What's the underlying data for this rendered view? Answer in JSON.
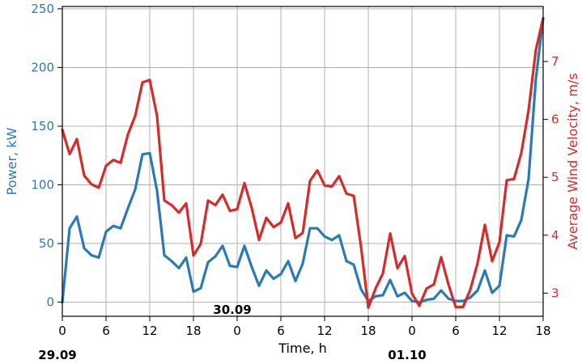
{
  "chart_data": {
    "type": "line",
    "title": "",
    "xlabel": "Time, h",
    "ylabel_left": "Power, kW",
    "ylabel_right": "Average Wind Velocity, m/s",
    "grid": true,
    "xlim": [
      0,
      66
    ],
    "ylim_left": [
      -12,
      252
    ],
    "ylim_right": [
      2.6,
      7.95
    ],
    "x_ticks": [
      0,
      6,
      12,
      18,
      24,
      30,
      36,
      42,
      48,
      54,
      60,
      66
    ],
    "x_tick_labels": [
      "0",
      "6",
      "12",
      "18",
      "0",
      "6",
      "12",
      "18",
      "0",
      "6",
      "12",
      "18"
    ],
    "y_left_ticks": [
      0,
      50,
      100,
      150,
      200,
      250
    ],
    "y_right_ticks": [
      3,
      4,
      5,
      6,
      7
    ],
    "date_labels": [
      {
        "text": "29.09",
        "x": 0,
        "row": "below"
      },
      {
        "text": "30.09",
        "x": 24,
        "row": "inside"
      },
      {
        "text": "01.10",
        "x": 48,
        "row": "below"
      }
    ],
    "colors": {
      "power": "#2a7ab5",
      "wind": "#d62b2b",
      "grid": "#b0b0b0",
      "axis": "#000000"
    },
    "series": [
      {
        "name": "Power, kW",
        "axis": "left",
        "x": [
          0,
          1,
          2,
          3,
          4,
          5,
          6,
          7,
          8,
          9,
          10,
          11,
          12,
          13,
          14,
          15,
          16,
          17,
          18,
          19,
          20,
          21,
          22,
          23,
          24,
          25,
          26,
          27,
          28,
          29,
          30,
          31,
          32,
          33,
          34,
          35,
          36,
          37,
          38,
          39,
          40,
          41,
          42,
          43,
          44,
          45,
          46,
          47,
          48,
          49,
          50,
          51,
          52,
          53,
          54,
          55,
          56,
          57,
          58,
          59,
          60,
          61,
          62,
          63,
          64,
          65,
          66
        ],
        "values": [
          0,
          63,
          73,
          46,
          40,
          38,
          60,
          65,
          63,
          80,
          96,
          126,
          127,
          95,
          40,
          35,
          29,
          38,
          9,
          12,
          34,
          39,
          48,
          31,
          30,
          48,
          30,
          14,
          27,
          20,
          24,
          35,
          18,
          33,
          63,
          63,
          56,
          53,
          57,
          35,
          32,
          11,
          1,
          5,
          6,
          19,
          5,
          8,
          1,
          0,
          2,
          3,
          10,
          3,
          1,
          1,
          4,
          10,
          27,
          8,
          14,
          57,
          56,
          70,
          105,
          190,
          242
        ]
      },
      {
        "name": "Average Wind Velocity, m/s",
        "axis": "right",
        "x": [
          0,
          1,
          2,
          3,
          4,
          5,
          6,
          7,
          8,
          9,
          10,
          11,
          12,
          13,
          14,
          15,
          16,
          17,
          18,
          19,
          20,
          21,
          22,
          23,
          24,
          25,
          26,
          27,
          28,
          29,
          30,
          31,
          32,
          33,
          34,
          35,
          36,
          37,
          38,
          39,
          40,
          41,
          42,
          43,
          44,
          45,
          46,
          47,
          48,
          49,
          50,
          51,
          52,
          53,
          54,
          55,
          56,
          57,
          58,
          59,
          60,
          61,
          62,
          63,
          64,
          65,
          66
        ],
        "values": [
          5.82,
          5.4,
          5.66,
          5.03,
          4.88,
          4.82,
          5.2,
          5.3,
          5.25,
          5.74,
          6.06,
          6.64,
          6.68,
          6.06,
          4.6,
          4.52,
          4.39,
          4.55,
          3.65,
          3.85,
          4.6,
          4.52,
          4.7,
          4.42,
          4.45,
          4.9,
          4.47,
          3.92,
          4.3,
          4.14,
          4.22,
          4.55,
          3.95,
          4.04,
          4.94,
          5.12,
          4.86,
          4.84,
          5.02,
          4.72,
          4.68,
          3.8,
          2.75,
          3.08,
          3.34,
          4.03,
          3.43,
          3.64,
          2.99,
          2.78,
          3.08,
          3.15,
          3.62,
          3.15,
          2.76,
          2.76,
          3.06,
          3.52,
          4.18,
          3.55,
          3.88,
          4.95,
          4.97,
          5.42,
          6.16,
          7.2,
          7.75
        ]
      }
    ]
  }
}
